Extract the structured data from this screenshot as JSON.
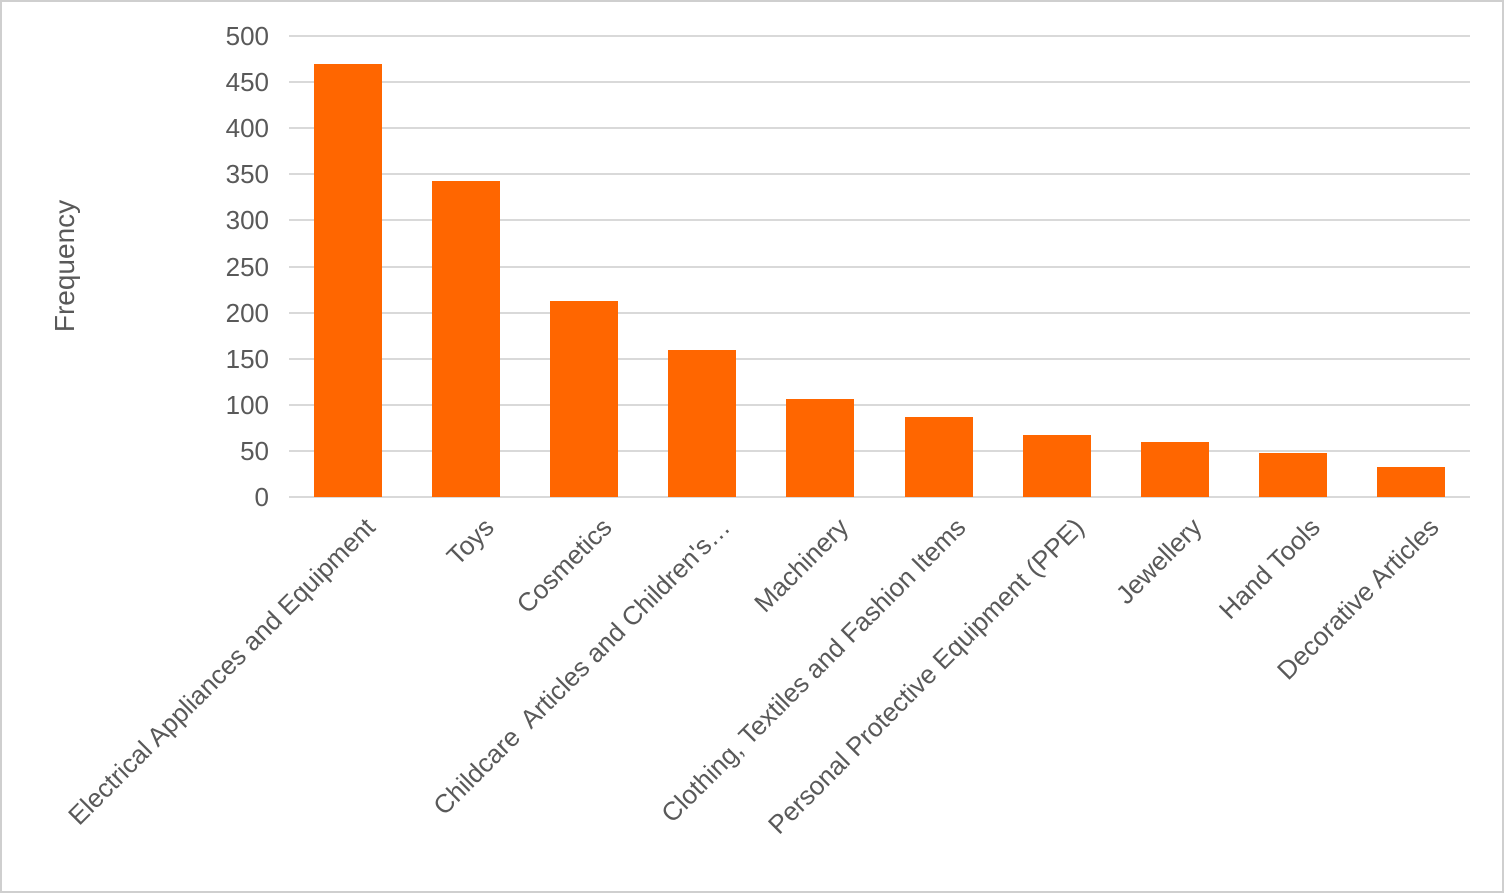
{
  "chart_data": {
    "type": "bar",
    "title": "",
    "xlabel": "",
    "ylabel": "Frequency",
    "categories": [
      "Electrical Appliances and Equipment",
      "Toys",
      "Cosmetics",
      "Childcare  Articles and Children's…",
      "Machinery",
      "Clothing, Textiles and Fashion Items",
      "Personal Protective Equipment (PPE)",
      "Jewellery",
      "Hand Tools",
      "Decorative Articles"
    ],
    "values": [
      470,
      343,
      213,
      159,
      106,
      87,
      67,
      60,
      48,
      33
    ],
    "ylim": [
      0,
      500
    ],
    "ytick_step": 50,
    "yticks": [
      0,
      50,
      100,
      150,
      200,
      250,
      300,
      350,
      400,
      450,
      500
    ],
    "grid": true,
    "legend_position": "none",
    "x_label_rotation_deg": 45,
    "colors": {
      "bar": "#FF6600",
      "gridline": "#D9D9D9",
      "axis_text": "#595959",
      "frame_border": "#CFCFCF",
      "background": "#FFFFFF"
    }
  }
}
